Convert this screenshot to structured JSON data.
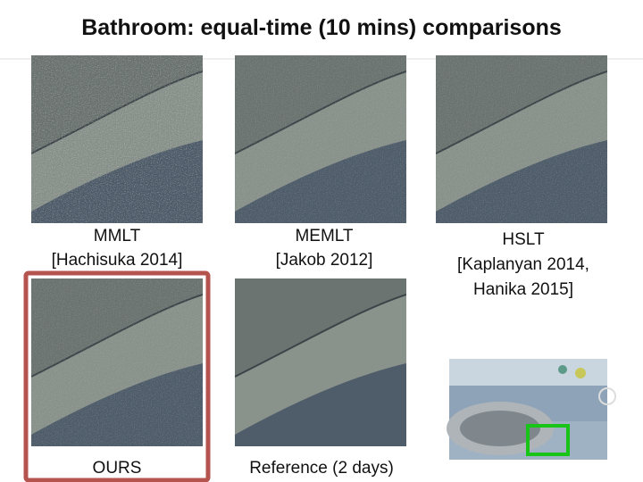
{
  "title": "Bathroom: equal-time (10 mins) comparisons",
  "panels": [
    {
      "label": [
        "MMLT",
        "[Hachisuka 2014]"
      ]
    },
    {
      "label": [
        "MEMLT",
        "[Jakob 2012]"
      ]
    },
    {
      "label": [
        "HSLT",
        "[Kaplanyan 2014,",
        "Hanika 2015]"
      ]
    },
    {
      "label": [
        "OURS"
      ]
    },
    {
      "label": [
        "Reference (2 days)"
      ]
    }
  ]
}
